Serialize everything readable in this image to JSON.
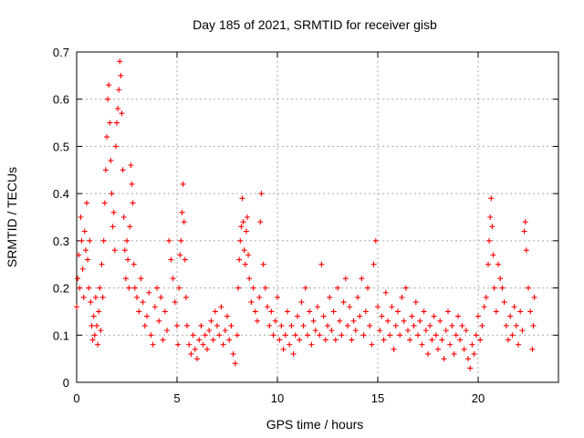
{
  "chart_data": {
    "type": "scatter",
    "title": "Day 185 of 2021, SRMTID for receiver gisb",
    "xlabel": "GPS time / hours",
    "ylabel": "SRMTID / TECUs",
    "xlim": [
      0,
      24
    ],
    "ylim": [
      0,
      0.7
    ],
    "x_ticks": [
      0,
      5,
      10,
      15,
      20
    ],
    "y_ticks": [
      0,
      0.1,
      0.2,
      0.3,
      0.4,
      0.5,
      0.6,
      0.7
    ],
    "x_tick_labels": [
      "0",
      "5",
      "10",
      "15",
      "20"
    ],
    "y_tick_labels": [
      "0",
      "0.1",
      "0.2",
      "0.3",
      "0.4",
      "0.5",
      "0.6",
      "0.7"
    ],
    "grid": true,
    "marker": "+",
    "color": "#ff0000",
    "series": [
      {
        "name": "SRMTID",
        "points": [
          [
            0.0,
            0.16
          ],
          [
            0.05,
            0.22
          ],
          [
            0.1,
            0.27
          ],
          [
            0.15,
            0.2
          ],
          [
            0.2,
            0.35
          ],
          [
            0.25,
            0.3
          ],
          [
            0.3,
            0.24
          ],
          [
            0.35,
            0.18
          ],
          [
            0.4,
            0.32
          ],
          [
            0.45,
            0.28
          ],
          [
            0.5,
            0.38
          ],
          [
            0.55,
            0.26
          ],
          [
            0.6,
            0.2
          ],
          [
            0.65,
            0.3
          ],
          [
            0.7,
            0.17
          ],
          [
            0.75,
            0.12
          ],
          [
            0.8,
            0.09
          ],
          [
            0.85,
            0.14
          ],
          [
            0.9,
            0.1
          ],
          [
            0.95,
            0.18
          ],
          [
            1.0,
            0.12
          ],
          [
            1.05,
            0.08
          ],
          [
            1.1,
            0.15
          ],
          [
            1.15,
            0.2
          ],
          [
            1.2,
            0.11
          ],
          [
            1.25,
            0.25
          ],
          [
            1.3,
            0.18
          ],
          [
            1.35,
            0.3
          ],
          [
            1.4,
            0.38
          ],
          [
            1.45,
            0.45
          ],
          [
            1.5,
            0.52
          ],
          [
            1.55,
            0.6
          ],
          [
            1.6,
            0.63
          ],
          [
            1.65,
            0.55
          ],
          [
            1.7,
            0.47
          ],
          [
            1.75,
            0.4
          ],
          [
            1.8,
            0.33
          ],
          [
            1.85,
            0.36
          ],
          [
            1.9,
            0.28
          ],
          [
            1.95,
            0.5
          ],
          [
            2.0,
            0.55
          ],
          [
            2.05,
            0.58
          ],
          [
            2.1,
            0.62
          ],
          [
            2.15,
            0.68
          ],
          [
            2.2,
            0.65
          ],
          [
            2.25,
            0.57
          ],
          [
            2.3,
            0.45
          ],
          [
            2.35,
            0.35
          ],
          [
            2.4,
            0.28
          ],
          [
            2.45,
            0.22
          ],
          [
            2.5,
            0.3
          ],
          [
            2.55,
            0.26
          ],
          [
            2.6,
            0.2
          ],
          [
            2.65,
            0.33
          ],
          [
            2.7,
            0.46
          ],
          [
            2.75,
            0.42
          ],
          [
            2.8,
            0.38
          ],
          [
            2.85,
            0.25
          ],
          [
            2.9,
            0.2
          ],
          [
            3.0,
            0.18
          ],
          [
            3.1,
            0.15
          ],
          [
            3.2,
            0.22
          ],
          [
            3.3,
            0.17
          ],
          [
            3.4,
            0.12
          ],
          [
            3.5,
            0.14
          ],
          [
            3.6,
            0.19
          ],
          [
            3.7,
            0.1
          ],
          [
            3.8,
            0.08
          ],
          [
            3.9,
            0.16
          ],
          [
            4.0,
            0.2
          ],
          [
            4.1,
            0.13
          ],
          [
            4.2,
            0.18
          ],
          [
            4.3,
            0.09
          ],
          [
            4.4,
            0.15
          ],
          [
            4.5,
            0.11
          ],
          [
            4.6,
            0.3
          ],
          [
            4.7,
            0.26
          ],
          [
            4.8,
            0.22
          ],
          [
            4.9,
            0.17
          ],
          [
            5.0,
            0.12
          ],
          [
            5.05,
            0.08
          ],
          [
            5.1,
            0.2
          ],
          [
            5.15,
            0.27
          ],
          [
            5.2,
            0.3
          ],
          [
            5.25,
            0.36
          ],
          [
            5.3,
            0.42
          ],
          [
            5.35,
            0.34
          ],
          [
            5.4,
            0.26
          ],
          [
            5.45,
            0.18
          ],
          [
            5.5,
            0.12
          ],
          [
            5.6,
            0.08
          ],
          [
            5.7,
            0.06
          ],
          [
            5.8,
            0.1
          ],
          [
            5.9,
            0.07
          ],
          [
            6.0,
            0.05
          ],
          [
            6.1,
            0.09
          ],
          [
            6.2,
            0.12
          ],
          [
            6.3,
            0.08
          ],
          [
            6.4,
            0.1
          ],
          [
            6.5,
            0.07
          ],
          [
            6.6,
            0.11
          ],
          [
            6.7,
            0.13
          ],
          [
            6.8,
            0.09
          ],
          [
            6.9,
            0.15
          ],
          [
            7.0,
            0.12
          ],
          [
            7.1,
            0.1
          ],
          [
            7.2,
            0.16
          ],
          [
            7.3,
            0.08
          ],
          [
            7.4,
            0.11
          ],
          [
            7.5,
            0.14
          ],
          [
            7.6,
            0.09
          ],
          [
            7.7,
            0.12
          ],
          [
            7.8,
            0.06
          ],
          [
            7.9,
            0.04
          ],
          [
            8.0,
            0.1
          ],
          [
            8.05,
            0.2
          ],
          [
            8.1,
            0.26
          ],
          [
            8.15,
            0.3
          ],
          [
            8.2,
            0.33
          ],
          [
            8.25,
            0.39
          ],
          [
            8.3,
            0.34
          ],
          [
            8.35,
            0.28
          ],
          [
            8.4,
            0.25
          ],
          [
            8.45,
            0.32
          ],
          [
            8.5,
            0.35
          ],
          [
            8.55,
            0.27
          ],
          [
            8.6,
            0.22
          ],
          [
            8.7,
            0.17
          ],
          [
            8.8,
            0.2
          ],
          [
            8.9,
            0.15
          ],
          [
            9.0,
            0.13
          ],
          [
            9.1,
            0.18
          ],
          [
            9.15,
            0.34
          ],
          [
            9.2,
            0.4
          ],
          [
            9.3,
            0.25
          ],
          [
            9.4,
            0.2
          ],
          [
            9.5,
            0.16
          ],
          [
            9.6,
            0.12
          ],
          [
            9.7,
            0.15
          ],
          [
            9.8,
            0.1
          ],
          [
            9.9,
            0.13
          ],
          [
            10.0,
            0.18
          ],
          [
            10.1,
            0.09
          ],
          [
            10.2,
            0.12
          ],
          [
            10.3,
            0.07
          ],
          [
            10.4,
            0.1
          ],
          [
            10.5,
            0.15
          ],
          [
            10.6,
            0.08
          ],
          [
            10.7,
            0.12
          ],
          [
            10.8,
            0.06
          ],
          [
            10.9,
            0.1
          ],
          [
            11.0,
            0.14
          ],
          [
            11.1,
            0.09
          ],
          [
            11.2,
            0.17
          ],
          [
            11.3,
            0.12
          ],
          [
            11.4,
            0.2
          ],
          [
            11.5,
            0.1
          ],
          [
            11.6,
            0.15
          ],
          [
            11.7,
            0.08
          ],
          [
            11.8,
            0.13
          ],
          [
            11.9,
            0.11
          ],
          [
            12.0,
            0.16
          ],
          [
            12.1,
            0.1
          ],
          [
            12.2,
            0.25
          ],
          [
            12.3,
            0.14
          ],
          [
            12.4,
            0.09
          ],
          [
            12.5,
            0.12
          ],
          [
            12.6,
            0.18
          ],
          [
            12.7,
            0.11
          ],
          [
            12.8,
            0.15
          ],
          [
            12.9,
            0.09
          ],
          [
            13.0,
            0.2
          ],
          [
            13.1,
            0.13
          ],
          [
            13.2,
            0.1
          ],
          [
            13.3,
            0.17
          ],
          [
            13.4,
            0.22
          ],
          [
            13.5,
            0.12
          ],
          [
            13.6,
            0.16
          ],
          [
            13.7,
            0.09
          ],
          [
            13.8,
            0.13
          ],
          [
            13.9,
            0.11
          ],
          [
            14.0,
            0.18
          ],
          [
            14.1,
            0.14
          ],
          [
            14.2,
            0.22
          ],
          [
            14.3,
            0.1
          ],
          [
            14.4,
            0.15
          ],
          [
            14.5,
            0.2
          ],
          [
            14.6,
            0.12
          ],
          [
            14.7,
            0.08
          ],
          [
            14.8,
            0.25
          ],
          [
            14.9,
            0.3
          ],
          [
            15.0,
            0.16
          ],
          [
            15.1,
            0.11
          ],
          [
            15.2,
            0.14
          ],
          [
            15.3,
            0.09
          ],
          [
            15.4,
            0.19
          ],
          [
            15.5,
            0.13
          ],
          [
            15.6,
            0.1
          ],
          [
            15.7,
            0.16
          ],
          [
            15.8,
            0.07
          ],
          [
            15.9,
            0.12
          ],
          [
            16.0,
            0.15
          ],
          [
            16.1,
            0.1
          ],
          [
            16.2,
            0.18
          ],
          [
            16.3,
            0.13
          ],
          [
            16.4,
            0.2
          ],
          [
            16.5,
            0.11
          ],
          [
            16.6,
            0.09
          ],
          [
            16.7,
            0.14
          ],
          [
            16.8,
            0.12
          ],
          [
            16.9,
            0.17
          ],
          [
            17.0,
            0.1
          ],
          [
            17.1,
            0.13
          ],
          [
            17.2,
            0.08
          ],
          [
            17.3,
            0.15
          ],
          [
            17.4,
            0.11
          ],
          [
            17.5,
            0.06
          ],
          [
            17.6,
            0.12
          ],
          [
            17.7,
            0.09
          ],
          [
            17.8,
            0.14
          ],
          [
            17.9,
            0.1
          ],
          [
            18.0,
            0.07
          ],
          [
            18.1,
            0.13
          ],
          [
            18.2,
            0.09
          ],
          [
            18.3,
            0.05
          ],
          [
            18.4,
            0.11
          ],
          [
            18.5,
            0.15
          ],
          [
            18.6,
            0.08
          ],
          [
            18.7,
            0.12
          ],
          [
            18.8,
            0.06
          ],
          [
            18.9,
            0.1
          ],
          [
            19.0,
            0.14
          ],
          [
            19.1,
            0.09
          ],
          [
            19.2,
            0.12
          ],
          [
            19.3,
            0.07
          ],
          [
            19.4,
            0.11
          ],
          [
            19.5,
            0.05
          ],
          [
            19.6,
            0.03
          ],
          [
            19.7,
            0.08
          ],
          [
            19.8,
            0.06
          ],
          [
            19.9,
            0.1
          ],
          [
            20.0,
            0.14
          ],
          [
            20.1,
            0.09
          ],
          [
            20.2,
            0.12
          ],
          [
            20.3,
            0.16
          ],
          [
            20.4,
            0.18
          ],
          [
            20.5,
            0.25
          ],
          [
            20.55,
            0.3
          ],
          [
            20.6,
            0.35
          ],
          [
            20.65,
            0.39
          ],
          [
            20.7,
            0.33
          ],
          [
            20.75,
            0.27
          ],
          [
            20.8,
            0.2
          ],
          [
            20.9,
            0.15
          ],
          [
            21.0,
            0.25
          ],
          [
            21.1,
            0.22
          ],
          [
            21.2,
            0.2
          ],
          [
            21.3,
            0.17
          ],
          [
            21.4,
            0.12
          ],
          [
            21.5,
            0.09
          ],
          [
            21.6,
            0.14
          ],
          [
            21.7,
            0.1
          ],
          [
            21.8,
            0.16
          ],
          [
            21.9,
            0.12
          ],
          [
            22.0,
            0.08
          ],
          [
            22.1,
            0.15
          ],
          [
            22.2,
            0.11
          ],
          [
            22.3,
            0.32
          ],
          [
            22.35,
            0.34
          ],
          [
            22.4,
            0.28
          ],
          [
            22.5,
            0.2
          ],
          [
            22.6,
            0.15
          ],
          [
            22.7,
            0.07
          ],
          [
            22.75,
            0.12
          ],
          [
            22.8,
            0.18
          ]
        ]
      }
    ]
  }
}
